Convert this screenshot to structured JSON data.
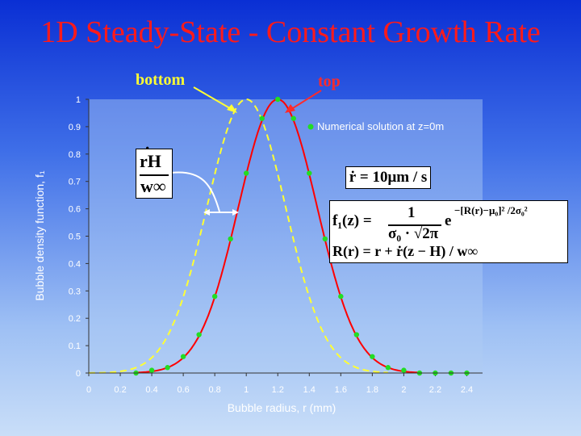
{
  "slide": {
    "title": "1D Steady-State - Constant Growth Rate",
    "label_bottom": "bottom",
    "label_top": "top",
    "annotation_numerator": "rH",
    "annotation_denominator": "w∞",
    "annotation_dot": "˙",
    "rate_text": "ṙ = 10μm / s",
    "formula_lhs": "f₁(z) =",
    "formula_num": "1",
    "formula_den": "σ₀ · √2π",
    "formula_exp_base": "e",
    "formula_exp_sup": "−[R(r)−μ₀]² /2σ₀²",
    "formula_line2": "R(r) = r + ṙ(z − H) / w∞"
  },
  "chart_data": {
    "type": "line",
    "xlabel": "Bubble radius, r (mm)",
    "ylabel": "Bubble density function, f₁",
    "xlim": [
      0,
      2.5
    ],
    "ylim": [
      0,
      1
    ],
    "x_ticks": [
      "0",
      "0.2",
      "0.4",
      "0.6",
      "0.8",
      "1",
      "1.2",
      "1.4",
      "1.6",
      "1.8",
      "2",
      "2.2",
      "2.4"
    ],
    "y_ticks": [
      "0",
      "0.1",
      "0.2",
      "0.3",
      "0.4",
      "0.5",
      "0.6",
      "0.7",
      "0.8",
      "0.9",
      "1"
    ],
    "legend": {
      "entry": "Numerical solution at z=0m",
      "position": "top-right"
    },
    "series": [
      {
        "name": "top",
        "style": "solid",
        "color": "#ff0000",
        "mean": 1.2,
        "sigma": 0.25
      },
      {
        "name": "bottom",
        "style": "dashed",
        "color": "#ffff33",
        "mean": 1.0,
        "sigma": 0.25
      },
      {
        "name": "Numerical solution at z=0m",
        "style": "markers",
        "color": "#22dd22",
        "x": [
          0.3,
          0.4,
          0.5,
          0.6,
          0.7,
          0.8,
          0.9,
          1.0,
          1.1,
          1.2,
          1.3,
          1.4,
          1.5,
          1.6,
          1.7,
          1.8,
          1.9,
          2.0,
          2.1,
          2.2,
          2.3,
          2.4
        ],
        "y": [
          0.0,
          0.01,
          0.02,
          0.06,
          0.14,
          0.28,
          0.49,
          0.73,
          0.93,
          1.0,
          0.93,
          0.73,
          0.49,
          0.28,
          0.14,
          0.06,
          0.02,
          0.01,
          0.0,
          0.0,
          0.0,
          0.0
        ]
      }
    ]
  }
}
